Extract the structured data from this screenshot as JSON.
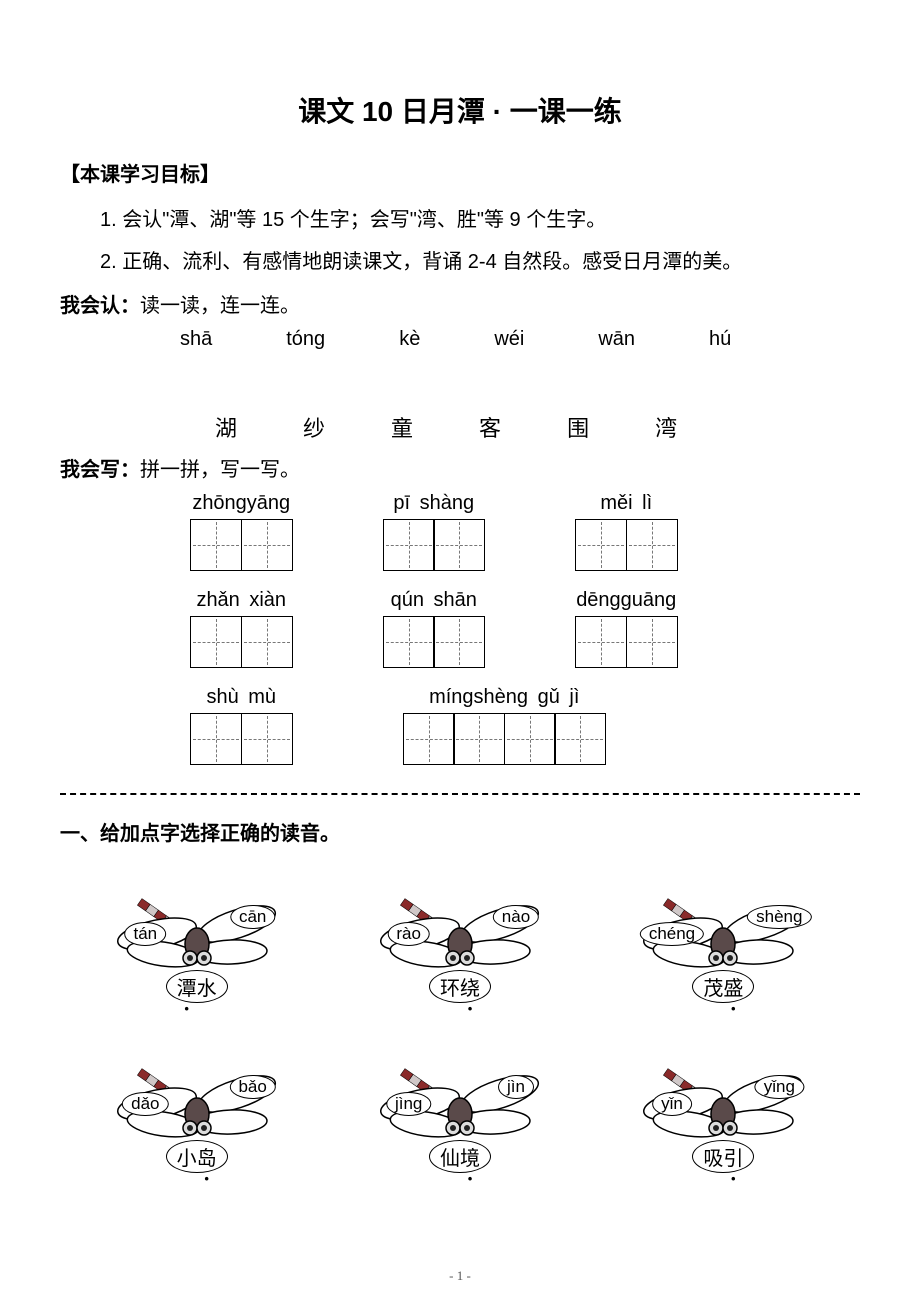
{
  "title": "课文 10  日月潭 · 一课一练",
  "goals_heading": "【本课学习目标】",
  "goal1": "1. 会认\"潭、湖\"等 15 个生字；会写\"湾、胜\"等 9 个生字。",
  "goal2": "2. 正确、流利、有感情地朗读课文，背诵 2-4 自然段。感受日月潭的美。",
  "read_label_bold": "我会认：",
  "read_label_rest": "读一读，连一连。",
  "pinyin_row": [
    "shā",
    "tóng",
    "kè",
    "wéi",
    "wān",
    "hú"
  ],
  "hanzi_row": [
    "湖",
    "纱",
    "童",
    "客",
    "围",
    "湾"
  ],
  "write_label_bold": "我会写：",
  "write_label_rest": "拼一拼，写一写。",
  "write_items": {
    "r1": [
      {
        "pinyin": "zhōngyāng",
        "boxes": 2
      },
      {
        "pinyin": "pī  shàng",
        "boxes": 2
      },
      {
        "pinyin": "měi    lì",
        "boxes": 2
      }
    ],
    "r2": [
      {
        "pinyin": "zhǎn xiàn",
        "boxes": 2
      },
      {
        "pinyin": "qún  shān",
        "boxes": 2
      },
      {
        "pinyin": "dēngguāng",
        "boxes": 2
      }
    ],
    "r3": [
      {
        "pinyin": "shù   mù",
        "boxes": 2
      },
      {
        "pinyin": "míngshèng  gǔ    jì",
        "boxes": 4
      }
    ]
  },
  "ex1_heading": "一、给加点字选择正确的读音。",
  "dragonflies": [
    {
      "left": "tán",
      "right": "cān",
      "word_pre": "",
      "word_dot": "潭",
      "word_post": "水",
      "dotpos": "first"
    },
    {
      "left": "rào",
      "right": "nào",
      "word_pre": "环",
      "word_dot": "绕",
      "word_post": "",
      "dotpos": "second"
    },
    {
      "left": "chéng",
      "right": "shèng",
      "word_pre": "茂",
      "word_dot": "盛",
      "word_post": "",
      "dotpos": "second"
    },
    {
      "left": "dǎo",
      "right": "bǎo",
      "word_pre": "小",
      "word_dot": "岛",
      "word_post": "",
      "dotpos": "second"
    },
    {
      "left": "jìng",
      "right": "jìn",
      "word_pre": "仙",
      "word_dot": "境",
      "word_post": "",
      "dotpos": "second"
    },
    {
      "left": "yǐn",
      "right": "yǐng",
      "word_pre": "吸",
      "word_dot": "引",
      "word_post": "",
      "dotpos": "second"
    }
  ],
  "colors": {
    "body_stroke": "#000000",
    "body_fill": "#5a4a4a",
    "wing_fill": "#ffffff",
    "tail_stripe1": "#8a2a2a",
    "tail_stripe2": "#d0c8c8"
  },
  "page_num": "- 1 -"
}
